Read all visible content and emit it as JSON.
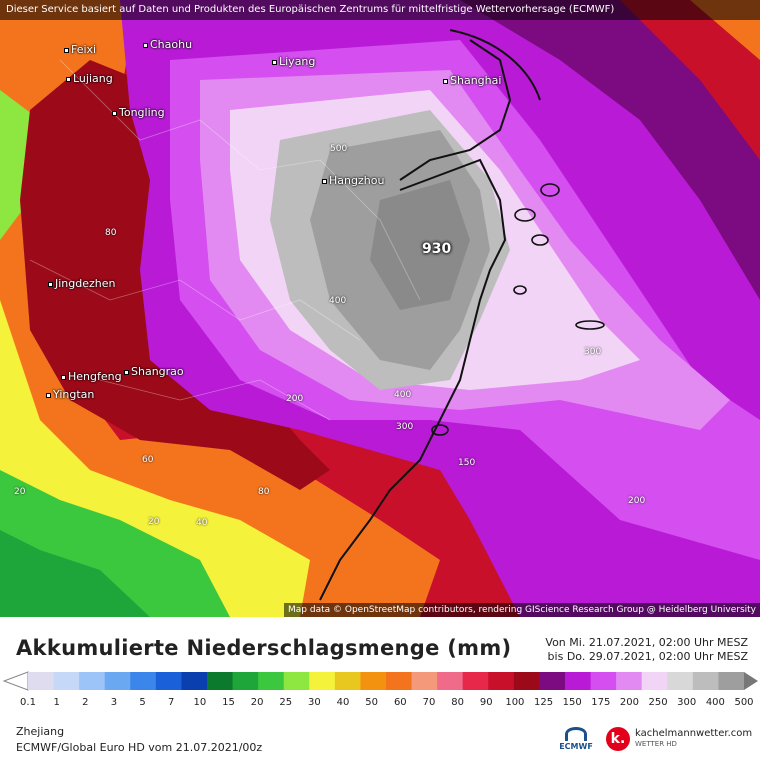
{
  "header": {
    "notice": "Dieser Service basiert auf Daten und Produkten des Europäischen Zentrums für mittelfristige Wettervorhersage (ECMWF)",
    "attribution": "Map data © OpenStreetMap contributors, rendering GIScience Research Group @ Heidelberg University"
  },
  "map": {
    "cities": [
      {
        "name": "Feixi"
      },
      {
        "name": "Chaohu"
      },
      {
        "name": "Liyang"
      },
      {
        "name": "Shanghai"
      },
      {
        "name": "Lujiang"
      },
      {
        "name": "Tongling"
      },
      {
        "name": "Hangzhou"
      },
      {
        "name": "Jingdezhen"
      },
      {
        "name": "Shangrao"
      },
      {
        "name": "Hengfeng"
      },
      {
        "name": "Yingtan"
      }
    ],
    "max_value": "930",
    "contour_labels": [
      "500",
      "400",
      "400",
      "300",
      "300",
      "200",
      "200",
      "150",
      "80",
      "80",
      "60",
      "40",
      "20",
      "20"
    ]
  },
  "legend": {
    "title": "Akkumulierte Niederschlagsmenge (mm)",
    "period_from": "Von Mi. 21.07.2021, 02:00 Uhr MESZ",
    "period_to": "bis Do. 29.07.2021, 02:00 Uhr MESZ",
    "ticks": [
      "0.1",
      "1",
      "2",
      "3",
      "5",
      "7",
      "10",
      "15",
      "20",
      "25",
      "30",
      "40",
      "50",
      "60",
      "70",
      "80",
      "90",
      "100",
      "125",
      "150",
      "175",
      "200",
      "250",
      "300",
      "400",
      "500"
    ],
    "colors": [
      "#e0dcf0",
      "#c6d8f8",
      "#9cc4f8",
      "#6aa8f2",
      "#3a86ea",
      "#1a60d8",
      "#0a3fb0",
      "#0c7a2c",
      "#1ea63a",
      "#3cc83e",
      "#8ee640",
      "#f4f23a",
      "#e8c81e",
      "#f2920e",
      "#f4741e",
      "#f49a7a",
      "#f06a8a",
      "#e8284a",
      "#c8102a",
      "#9c0a1a",
      "#7c0a80",
      "#b81ad6",
      "#d44ef0",
      "#e28af2",
      "#f2d4f6",
      "#d8d8d8",
      "#bdbdbd",
      "#9e9e9e"
    ]
  },
  "footer": {
    "region": "Zhejiang",
    "model": "ECMWF/Global Euro HD vom  21.07.2021/00z",
    "ecmwf_logo": "ECMWF",
    "brand": "kachelmannwetter.com",
    "brand_sub": "WETTER HD",
    "brand_icon": "k."
  }
}
